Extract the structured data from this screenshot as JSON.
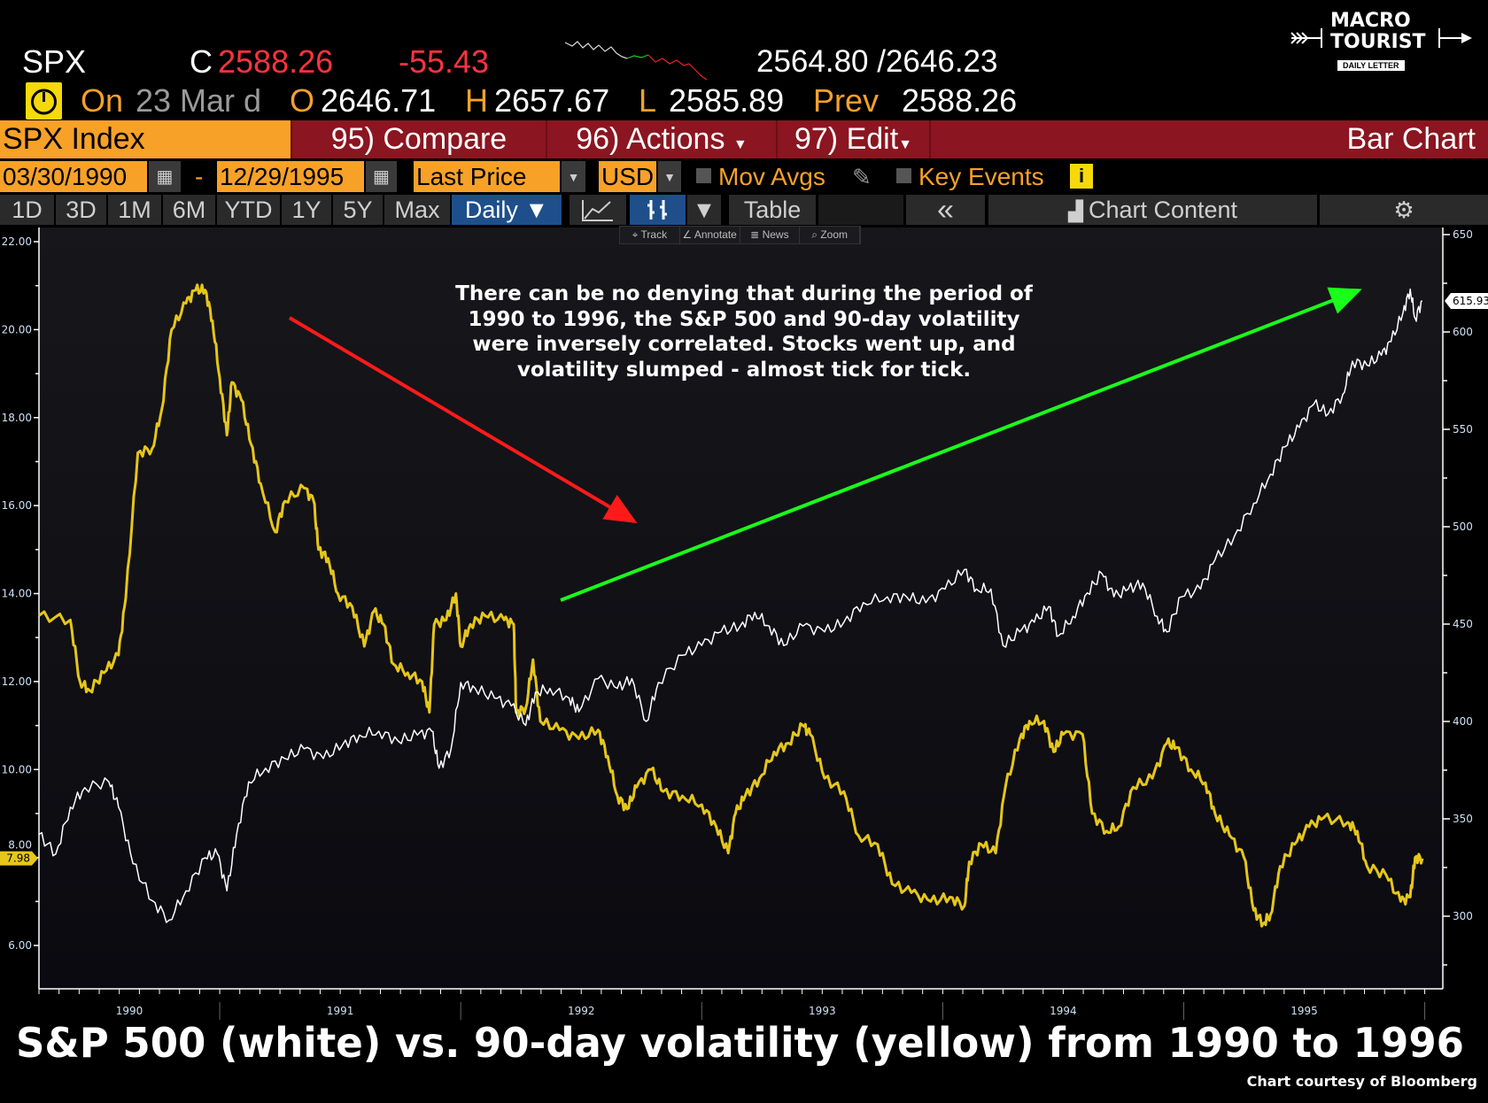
{
  "quote": {
    "ticker": "SPX",
    "close_prefix": "C",
    "close": "2588.26",
    "change": "-55.43",
    "range": "2564.80 /2646.23",
    "on_label": "On",
    "date": "23 Mar d",
    "open_label": "O",
    "open": "2646.71",
    "high_label": "H",
    "high": "2657.67",
    "low_label": "L",
    "low": "2585.89",
    "prev_label": "Prev",
    "prev": "2588.26"
  },
  "logo": {
    "line1": "MACRO",
    "line2": "TOURIST",
    "tagline": "DAILY LETTER"
  },
  "menubar": {
    "security": "SPX Index",
    "compare": "95) Compare",
    "actions": "96) Actions",
    "edit": "97) Edit",
    "chart_type": "Bar Chart"
  },
  "settings": {
    "start_date": "03/30/1990",
    "dash": "-",
    "end_date": "12/29/1995",
    "field": "Last Price",
    "currency": "USD",
    "mov_avgs": "Mov Avgs",
    "key_events": "Key Events",
    "info": "i"
  },
  "toolbar": {
    "periods": [
      "1D",
      "3D",
      "1M",
      "6M",
      "YTD",
      "1Y",
      "5Y",
      "Max"
    ],
    "frequency": "Daily ▼",
    "dropdown": "▼",
    "table": "Table",
    "collapse": "«",
    "chart_content": "Chart Content",
    "mini": [
      "Track",
      "Annotate",
      "News",
      "Zoom"
    ]
  },
  "colors": {
    "vol": "#e6c619",
    "spx": "#ffffff",
    "red_arrow": "#ff1a1a",
    "green_arrow": "#1aff1a",
    "orange": "#f7a128",
    "menu_red": "#8b1520"
  },
  "chart_data": {
    "type": "line",
    "title": "S&P 500 (white) vs. 90-day volatility (yellow) from 1990 to 1996",
    "annotation": "There can be no denying that during the period of 1990 to 1996, the S&P 500 and 90-day volatility were inversely correlated. Stocks went up, and volatility slumped - almost tick for tick.",
    "credit": "Chart courtesy of Bloomberg",
    "x_range": [
      1990.25,
      1996.0
    ],
    "x_ticks": [
      "1990",
      "1991",
      "1992",
      "1993",
      "1994",
      "1995"
    ],
    "left_axis": {
      "range": [
        6,
        22
      ],
      "ticks": [
        "22.00",
        "20.00",
        "18.00",
        "16.00",
        "14.00",
        "12.00",
        "10.00",
        "8.00",
        "6.00"
      ],
      "last_value": "7.98"
    },
    "right_axis": {
      "range": [
        300,
        650
      ],
      "ticks": [
        "650",
        "600",
        "550",
        "500",
        "450",
        "400",
        "350",
        "300"
      ],
      "last_value": "615.93"
    },
    "series": [
      {
        "name": "90-day volatility",
        "axis": "left",
        "color": "#e6c619",
        "points": [
          [
            1990.25,
            13.5
          ],
          [
            1990.38,
            13.4
          ],
          [
            1990.42,
            12.0
          ],
          [
            1990.46,
            11.8
          ],
          [
            1990.52,
            12.2
          ],
          [
            1990.58,
            12.6
          ],
          [
            1990.61,
            13.9
          ],
          [
            1990.66,
            17.2
          ],
          [
            1990.72,
            17.3
          ],
          [
            1990.76,
            18.2
          ],
          [
            1990.8,
            20.0
          ],
          [
            1990.86,
            20.6
          ],
          [
            1990.9,
            20.9
          ],
          [
            1990.94,
            20.9
          ],
          [
            1990.97,
            20.2
          ],
          [
            1991.0,
            18.9
          ],
          [
            1991.03,
            17.6
          ],
          [
            1991.05,
            18.8
          ],
          [
            1991.09,
            18.4
          ],
          [
            1991.13,
            17.4
          ],
          [
            1991.17,
            16.5
          ],
          [
            1991.23,
            15.4
          ],
          [
            1991.27,
            16.1
          ],
          [
            1991.35,
            16.4
          ],
          [
            1991.39,
            16.1
          ],
          [
            1991.41,
            15.0
          ],
          [
            1991.45,
            14.8
          ],
          [
            1991.49,
            14.0
          ],
          [
            1991.55,
            13.7
          ],
          [
            1991.6,
            12.8
          ],
          [
            1991.64,
            13.6
          ],
          [
            1991.68,
            13.3
          ],
          [
            1991.72,
            12.4
          ],
          [
            1991.78,
            12.2
          ],
          [
            1991.84,
            12.0
          ],
          [
            1991.87,
            11.3
          ],
          [
            1991.89,
            13.3
          ],
          [
            1991.94,
            13.4
          ],
          [
            1991.98,
            14.0
          ],
          [
            1992.0,
            12.8
          ],
          [
            1992.04,
            13.3
          ],
          [
            1992.1,
            13.5
          ],
          [
            1992.18,
            13.4
          ],
          [
            1992.22,
            13.3
          ],
          [
            1992.23,
            11.3
          ],
          [
            1992.27,
            11.4
          ],
          [
            1992.3,
            12.5
          ],
          [
            1992.33,
            11.1
          ],
          [
            1992.41,
            10.9
          ],
          [
            1992.49,
            10.7
          ],
          [
            1992.57,
            10.9
          ],
          [
            1992.61,
            10.3
          ],
          [
            1992.65,
            9.4
          ],
          [
            1992.69,
            9.1
          ],
          [
            1992.73,
            9.6
          ],
          [
            1992.79,
            10.0
          ],
          [
            1992.84,
            9.5
          ],
          [
            1992.92,
            9.4
          ],
          [
            1993.0,
            9.2
          ],
          [
            1993.06,
            8.7
          ],
          [
            1993.11,
            8.1
          ],
          [
            1993.14,
            9.0
          ],
          [
            1993.18,
            9.4
          ],
          [
            1993.24,
            9.8
          ],
          [
            1993.3,
            10.4
          ],
          [
            1993.36,
            10.6
          ],
          [
            1993.42,
            11.0
          ],
          [
            1993.45,
            10.8
          ],
          [
            1993.51,
            9.8
          ],
          [
            1993.59,
            9.5
          ],
          [
            1993.65,
            8.5
          ],
          [
            1993.73,
            8.3
          ],
          [
            1993.79,
            7.4
          ],
          [
            1993.87,
            7.2
          ],
          [
            1993.95,
            7.0
          ],
          [
            1994.03,
            7.1
          ],
          [
            1994.09,
            6.9
          ],
          [
            1994.11,
            7.9
          ],
          [
            1994.16,
            8.3
          ],
          [
            1994.22,
            8.1
          ],
          [
            1994.26,
            9.6
          ],
          [
            1994.32,
            10.7
          ],
          [
            1994.36,
            11.1
          ],
          [
            1994.42,
            11.1
          ],
          [
            1994.46,
            10.4
          ],
          [
            1994.5,
            10.8
          ],
          [
            1994.58,
            10.8
          ],
          [
            1994.62,
            9.0
          ],
          [
            1994.68,
            8.6
          ],
          [
            1994.73,
            8.7
          ],
          [
            1994.79,
            9.6
          ],
          [
            1994.87,
            9.8
          ],
          [
            1994.93,
            10.6
          ],
          [
            1994.97,
            10.5
          ],
          [
            1995.03,
            10.0
          ],
          [
            1995.09,
            9.7
          ],
          [
            1995.13,
            9.0
          ],
          [
            1995.19,
            8.5
          ],
          [
            1995.25,
            8.0
          ],
          [
            1995.29,
            6.8
          ],
          [
            1995.33,
            6.5
          ],
          [
            1995.36,
            6.7
          ],
          [
            1995.4,
            7.8
          ],
          [
            1995.46,
            8.3
          ],
          [
            1995.52,
            8.7
          ],
          [
            1995.58,
            8.9
          ],
          [
            1995.68,
            8.8
          ],
          [
            1995.72,
            8.6
          ],
          [
            1995.76,
            7.8
          ],
          [
            1995.84,
            7.6
          ],
          [
            1995.9,
            7.0
          ],
          [
            1995.94,
            7.1
          ],
          [
            1995.96,
            8.0
          ],
          [
            1995.99,
            7.98
          ]
        ]
      },
      {
        "name": "S&P 500",
        "axis": "right",
        "color": "#ffffff",
        "points": [
          [
            1990.25,
            342
          ],
          [
            1990.32,
            332
          ],
          [
            1990.38,
            356
          ],
          [
            1990.44,
            366
          ],
          [
            1990.54,
            369
          ],
          [
            1990.58,
            356
          ],
          [
            1990.64,
            327
          ],
          [
            1990.72,
            308
          ],
          [
            1990.79,
            298
          ],
          [
            1990.86,
            313
          ],
          [
            1990.94,
            330
          ],
          [
            1990.99,
            332
          ],
          [
            1991.03,
            313
          ],
          [
            1991.07,
            342
          ],
          [
            1991.12,
            369
          ],
          [
            1991.19,
            376
          ],
          [
            1991.27,
            381
          ],
          [
            1991.35,
            386
          ],
          [
            1991.43,
            381
          ],
          [
            1991.51,
            388
          ],
          [
            1991.58,
            393
          ],
          [
            1991.66,
            395
          ],
          [
            1991.74,
            390
          ],
          [
            1991.82,
            393
          ],
          [
            1991.88,
            395
          ],
          [
            1991.91,
            376
          ],
          [
            1991.96,
            386
          ],
          [
            1992.0,
            420
          ],
          [
            1992.06,
            417
          ],
          [
            1992.14,
            412
          ],
          [
            1992.21,
            408
          ],
          [
            1992.27,
            398
          ],
          [
            1992.31,
            415
          ],
          [
            1992.37,
            417
          ],
          [
            1992.45,
            412
          ],
          [
            1992.49,
            405
          ],
          [
            1992.57,
            422
          ],
          [
            1992.65,
            417
          ],
          [
            1992.71,
            422
          ],
          [
            1992.77,
            400
          ],
          [
            1992.82,
            420
          ],
          [
            1992.92,
            434
          ],
          [
            1993.0,
            439
          ],
          [
            1993.08,
            446
          ],
          [
            1993.16,
            449
          ],
          [
            1993.22,
            456
          ],
          [
            1993.28,
            449
          ],
          [
            1993.34,
            439
          ],
          [
            1993.42,
            449
          ],
          [
            1993.51,
            446
          ],
          [
            1993.59,
            451
          ],
          [
            1993.67,
            461
          ],
          [
            1993.77,
            464
          ],
          [
            1993.85,
            464
          ],
          [
            1993.93,
            461
          ],
          [
            1994.01,
            468
          ],
          [
            1994.09,
            478
          ],
          [
            1994.14,
            468
          ],
          [
            1994.2,
            468
          ],
          [
            1994.25,
            439
          ],
          [
            1994.32,
            446
          ],
          [
            1994.38,
            451
          ],
          [
            1994.44,
            459
          ],
          [
            1994.48,
            444
          ],
          [
            1994.54,
            454
          ],
          [
            1994.6,
            466
          ],
          [
            1994.66,
            476
          ],
          [
            1994.71,
            464
          ],
          [
            1994.77,
            468
          ],
          [
            1994.83,
            471
          ],
          [
            1994.89,
            454
          ],
          [
            1994.93,
            446
          ],
          [
            1994.99,
            464
          ],
          [
            1995.07,
            468
          ],
          [
            1995.13,
            483
          ],
          [
            1995.21,
            495
          ],
          [
            1995.29,
            512
          ],
          [
            1995.36,
            527
          ],
          [
            1995.42,
            541
          ],
          [
            1995.48,
            551
          ],
          [
            1995.54,
            563
          ],
          [
            1995.6,
            558
          ],
          [
            1995.66,
            568
          ],
          [
            1995.7,
            585
          ],
          [
            1995.76,
            583
          ],
          [
            1995.82,
            588
          ],
          [
            1995.86,
            595
          ],
          [
            1995.91,
            610
          ],
          [
            1995.94,
            622
          ],
          [
            1995.96,
            607
          ],
          [
            1995.99,
            615.93
          ]
        ]
      }
    ]
  }
}
